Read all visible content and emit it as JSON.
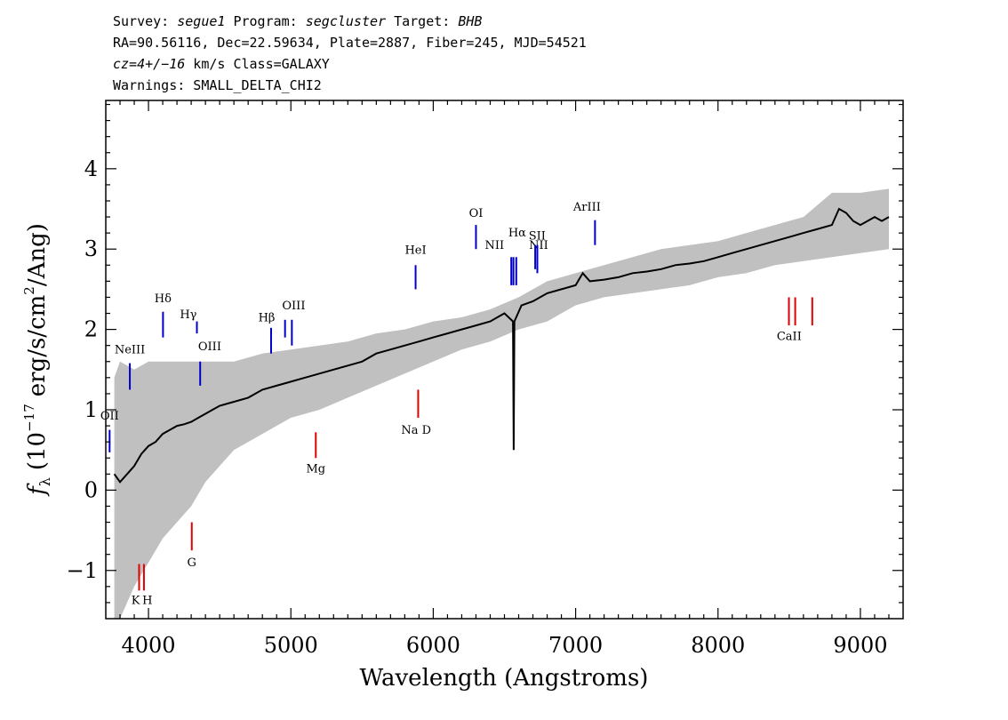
{
  "header": {
    "line1": {
      "survey_key": "Survey: ",
      "survey_val": "segue1",
      "program_key": " Program: ",
      "program_val": "segcluster",
      "target_key": " Target: ",
      "target_val": "BHB"
    },
    "line2": "RA=90.56116, Dec=22.59634, Plate=2887, Fiber=245, MJD=54521",
    "line3": {
      "cz_val": "cz=4+/−16",
      "cz_rest": " km/s Class=GALAXY"
    },
    "line4": "Warnings: SMALL_DELTA_CHI2"
  },
  "chart_data": {
    "type": "line",
    "xlabel": "Wavelength (Angstroms)",
    "ylabel_symbol": "f",
    "ylabel_sub": "λ",
    "ylabel_mid": "(10",
    "ylabel_exp": "−17",
    "ylabel_tail": "erg/s/cm",
    "ylabel_exp2": "2",
    "ylabel_end": "/Ang)",
    "xlim": [
      3700,
      9300
    ],
    "ylim": [
      -1.6,
      4.85
    ],
    "xticks": [
      4000,
      5000,
      6000,
      7000,
      8000,
      9000
    ],
    "xtick_labels": [
      "4000",
      "5000",
      "6000",
      "7000",
      "8000",
      "9000"
    ],
    "yticks": [
      -1,
      0,
      1,
      2,
      3,
      4
    ],
    "ytick_labels": [
      "−1",
      "0",
      "1",
      "2",
      "3",
      "4"
    ],
    "colors": {
      "flux": "#000000",
      "error_band": "#c0c0c0",
      "emission": "#0000c8",
      "absorption": "#e00000"
    },
    "series": [
      {
        "role": "flux",
        "x": [
          3760,
          3800,
          3850,
          3900,
          3950,
          4000,
          4050,
          4100,
          4150,
          4200,
          4250,
          4300,
          4350,
          4400,
          4450,
          4500,
          4600,
          4700,
          4800,
          4900,
          5000,
          5100,
          5200,
          5300,
          5400,
          5500,
          5600,
          5700,
          5800,
          5900,
          6000,
          6100,
          6200,
          6300,
          6400,
          6450,
          6500,
          6560,
          6565,
          6570,
          6620,
          6700,
          6800,
          6900,
          7000,
          7050,
          7100,
          7200,
          7300,
          7400,
          7500,
          7600,
          7700,
          7800,
          7900,
          8000,
          8100,
          8200,
          8300,
          8400,
          8500,
          8600,
          8700,
          8800,
          8850,
          8900,
          8950,
          9000,
          9050,
          9100,
          9150,
          9200
        ],
        "y": [
          0.2,
          0.1,
          0.2,
          0.3,
          0.45,
          0.55,
          0.6,
          0.7,
          0.75,
          0.8,
          0.82,
          0.85,
          0.9,
          0.95,
          1.0,
          1.05,
          1.1,
          1.15,
          1.25,
          1.3,
          1.35,
          1.4,
          1.45,
          1.5,
          1.55,
          1.6,
          1.7,
          1.75,
          1.8,
          1.85,
          1.9,
          1.95,
          2.0,
          2.05,
          2.1,
          2.15,
          2.2,
          2.1,
          0.5,
          2.1,
          2.3,
          2.35,
          2.45,
          2.5,
          2.55,
          2.7,
          2.6,
          2.62,
          2.65,
          2.7,
          2.72,
          2.75,
          2.8,
          2.82,
          2.85,
          2.9,
          2.95,
          3.0,
          3.05,
          3.1,
          3.15,
          3.2,
          3.25,
          3.3,
          3.5,
          3.45,
          3.35,
          3.3,
          3.35,
          3.4,
          3.35,
          3.4
        ]
      },
      {
        "role": "error_band",
        "x": [
          3760,
          3800,
          3900,
          4000,
          4100,
          4200,
          4300,
          4400,
          4500,
          4600,
          4800,
          5000,
          5200,
          5400,
          5600,
          5800,
          6000,
          6200,
          6400,
          6600,
          6800,
          7000,
          7200,
          7400,
          7600,
          7800,
          8000,
          8200,
          8400,
          8600,
          8800,
          9000,
          9200
        ],
        "upper": [
          1.4,
          1.6,
          1.5,
          1.6,
          1.6,
          1.6,
          1.6,
          1.6,
          1.6,
          1.6,
          1.7,
          1.75,
          1.8,
          1.85,
          1.95,
          2.0,
          2.1,
          2.15,
          2.25,
          2.4,
          2.6,
          2.7,
          2.8,
          2.9,
          3.0,
          3.05,
          3.1,
          3.2,
          3.3,
          3.4,
          3.7,
          3.7,
          3.75
        ],
        "lower": [
          -1.6,
          -1.6,
          -1.2,
          -0.9,
          -0.6,
          -0.4,
          -0.2,
          0.1,
          0.3,
          0.5,
          0.7,
          0.9,
          1.0,
          1.15,
          1.3,
          1.45,
          1.6,
          1.75,
          1.85,
          2.0,
          2.1,
          2.3,
          2.4,
          2.45,
          2.5,
          2.55,
          2.65,
          2.7,
          2.8,
          2.85,
          2.9,
          2.95,
          3.0
        ]
      }
    ],
    "lines": [
      {
        "label": "OII",
        "kind": "emission",
        "x": 3727,
        "y0": 0.47,
        "y1": 0.75,
        "lx": 3727,
        "ly": 0.88
      },
      {
        "label": "NeIII",
        "kind": "emission",
        "x": 3869,
        "y0": 1.25,
        "y1": 1.58,
        "lx": 3869,
        "ly": 1.7
      },
      {
        "label": "Hδ",
        "kind": "emission",
        "x": 4102,
        "y0": 1.9,
        "y1": 2.22,
        "lx": 4102,
        "ly": 2.34
      },
      {
        "label": "Hγ",
        "kind": "emission",
        "x": 4340,
        "y0": 1.95,
        "y1": 2.1,
        "lx": 4280,
        "ly": 2.14
      },
      {
        "label": "OIII",
        "kind": "emission",
        "x": 4363,
        "y0": 1.3,
        "y1": 1.6,
        "lx": 4430,
        "ly": 1.74
      },
      {
        "label": "Hβ",
        "kind": "emission",
        "x": 4861,
        "y0": 1.7,
        "y1": 2.02,
        "lx": 4830,
        "ly": 2.1
      },
      {
        "label": "OIII",
        "kind": "emission",
        "x": 4959,
        "y0": 1.9,
        "y1": 2.12,
        "lx": 5020,
        "ly": 2.25
      },
      {
        "label": "OIII",
        "kind": "emission",
        "x": 5007,
        "y0": 1.8,
        "y1": 2.12,
        "lx": 5020,
        "ly": 2.25
      },
      {
        "label": "HeI",
        "kind": "emission",
        "x": 5876,
        "y0": 2.5,
        "y1": 2.8,
        "lx": 5876,
        "ly": 2.94
      },
      {
        "label": "OI",
        "kind": "emission",
        "x": 6300,
        "y0": 3.0,
        "y1": 3.3,
        "lx": 6300,
        "ly": 3.4
      },
      {
        "label": "NII",
        "kind": "emission",
        "x": 6548,
        "y0": 2.55,
        "y1": 2.9,
        "lx": 6430,
        "ly": 3.0
      },
      {
        "label": "Hα",
        "kind": "emission",
        "x": 6563,
        "y0": 2.55,
        "y1": 2.9,
        "lx": 6590,
        "ly": 3.16
      },
      {
        "label": "NII",
        "kind": "emission",
        "x": 6583,
        "y0": 2.55,
        "y1": 2.9,
        "lx": 6740,
        "ly": 3.0
      },
      {
        "label": "SII",
        "kind": "emission",
        "x": 6716,
        "y0": 2.75,
        "y1": 3.05,
        "lx": 6730,
        "ly": 3.12
      },
      {
        "label": "SII",
        "kind": "emission",
        "x": 6731,
        "y0": 2.7,
        "y1": 3.05,
        "lx": 6730,
        "ly": 3.12
      },
      {
        "label": "ArIII",
        "kind": "emission",
        "x": 7136,
        "y0": 3.05,
        "y1": 3.36,
        "lx": 7080,
        "ly": 3.48
      },
      {
        "label": "K",
        "kind": "absorption",
        "x": 3934,
        "y0": -1.25,
        "y1": -0.92,
        "lx": 3910,
        "ly": -1.42
      },
      {
        "label": "H",
        "kind": "absorption",
        "x": 3968,
        "y0": -1.25,
        "y1": -0.92,
        "lx": 3992,
        "ly": -1.42
      },
      {
        "label": "G",
        "kind": "absorption",
        "x": 4304,
        "y0": -0.75,
        "y1": -0.4,
        "lx": 4304,
        "ly": -0.95
      },
      {
        "label": "Mg",
        "kind": "absorption",
        "x": 5175,
        "y0": 0.4,
        "y1": 0.72,
        "lx": 5175,
        "ly": 0.22
      },
      {
        "label": "Na D",
        "kind": "absorption",
        "x": 5894,
        "y0": 0.9,
        "y1": 1.25,
        "lx": 5880,
        "ly": 0.7
      },
      {
        "label": "CaII",
        "kind": "absorption",
        "x": 8498,
        "y0": 2.05,
        "y1": 2.4,
        "lx": 8500,
        "ly": 1.87
      },
      {
        "label": "CaII",
        "kind": "absorption",
        "x": 8542,
        "y0": 2.05,
        "y1": 2.4,
        "lx": 8500,
        "ly": 1.87
      },
      {
        "label": "CaII",
        "kind": "absorption",
        "x": 8662,
        "y0": 2.05,
        "y1": 2.4,
        "lx": 8500,
        "ly": 1.87
      }
    ]
  }
}
